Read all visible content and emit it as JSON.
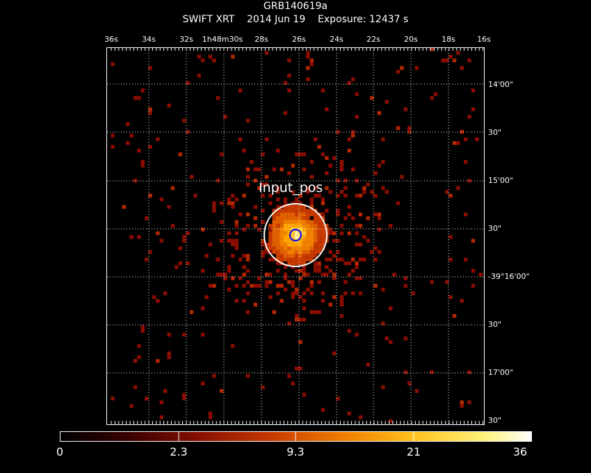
{
  "header": {
    "title": "GRB140619a",
    "instrument": "SWIFT XRT",
    "date": "2014 Jun 19",
    "exposure": "Exposure: 12437 s"
  },
  "ra_ticks": [
    "36s",
    "34s",
    "32s",
    "1h48m30s",
    "28s",
    "26s",
    "24s",
    "22s",
    "20s",
    "18s",
    "16s"
  ],
  "dec_ticks": [
    "14'00\"",
    "30\"",
    "15'00\"",
    "30\"",
    "-39°16'00\"",
    "30\"",
    "17'00\"",
    "30\""
  ],
  "source_label": "Input_pos",
  "colorbar": {
    "labels": [
      "0",
      "2.3",
      "9.3",
      "21",
      "36"
    ]
  },
  "colors": {
    "background": "#000000",
    "grid": "#ffffff",
    "circle": "#ffffff",
    "marker": "#0000ff"
  }
}
